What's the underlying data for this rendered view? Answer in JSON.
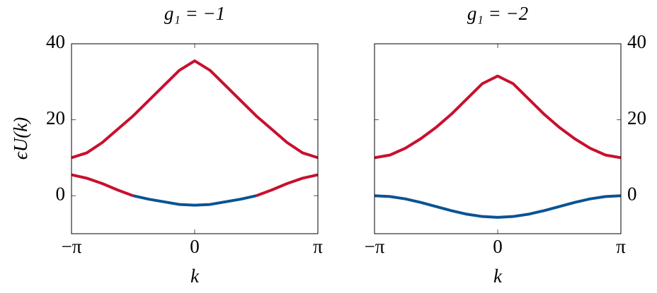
{
  "chart_data": [
    {
      "type": "line",
      "title": "g₁ = −1",
      "xlabel": "k",
      "ylabel": "ϵU(k)",
      "yaxis_side": "left",
      "x": [
        -3.1416,
        -2.7489,
        -2.3562,
        -1.9635,
        -1.5708,
        -1.1781,
        -0.7854,
        -0.3927,
        0,
        0.3927,
        0.7854,
        1.1781,
        1.5708,
        1.9635,
        2.3562,
        2.7489,
        3.1416
      ],
      "series": [
        {
          "color": "#c8102e",
          "values": [
            10,
            11.3,
            14,
            17.5,
            21,
            25,
            29,
            33,
            35.5,
            33,
            29,
            25,
            21,
            17.5,
            14,
            11.3,
            10
          ]
        },
        {
          "color": "#c8102e",
          "values": [
            5.5,
            4.6,
            3.2,
            1.5,
            0,
            null,
            null,
            null,
            null,
            null,
            null,
            null,
            0,
            1.5,
            3.2,
            4.6,
            5.5
          ]
        },
        {
          "color": "#0b5394",
          "values": [
            null,
            null,
            null,
            null,
            0,
            -0.9,
            -1.6,
            -2.3,
            -2.5,
            -2.3,
            -1.6,
            -0.9,
            0,
            null,
            null,
            null,
            null
          ]
        }
      ],
      "xlim": [
        -3.1416,
        3.1416
      ],
      "ylim": [
        -10,
        40
      ],
      "xticks": [
        {
          "value": -3.1416,
          "label": "−π"
        },
        0,
        {
          "value": 3.1416,
          "label": "π"
        }
      ],
      "yticks": [
        0,
        20,
        40
      ]
    },
    {
      "type": "line",
      "title": "g₁ = −2",
      "xlabel": "k",
      "yaxis_side": "right",
      "x": [
        -3.1416,
        -2.7489,
        -2.3562,
        -1.9635,
        -1.5708,
        -1.1781,
        -0.7854,
        -0.3927,
        0,
        0.3927,
        0.7854,
        1.1781,
        1.5708,
        1.9635,
        2.3562,
        2.7489,
        3.1416
      ],
      "series": [
        {
          "color": "#c8102e",
          "values": [
            10,
            10.7,
            12.5,
            15,
            18,
            21.5,
            25.5,
            29.5,
            31.5,
            29.5,
            25.5,
            21.5,
            18,
            15,
            12.5,
            10.7,
            10
          ]
        },
        {
          "color": "#0b5394",
          "values": [
            0,
            -0.22,
            -0.83,
            -1.76,
            -2.85,
            -3.94,
            -4.87,
            -5.48,
            -5.7,
            -5.48,
            -4.87,
            -3.94,
            -2.85,
            -1.76,
            -0.83,
            -0.22,
            0
          ]
        }
      ],
      "xlim": [
        -3.1416,
        3.1416
      ],
      "ylim": [
        -10,
        40
      ],
      "xticks": [
        {
          "value": -3.1416,
          "label": "−π"
        },
        0,
        {
          "value": 3.1416,
          "label": "π"
        }
      ],
      "yticks": [
        0,
        20,
        40
      ]
    }
  ]
}
